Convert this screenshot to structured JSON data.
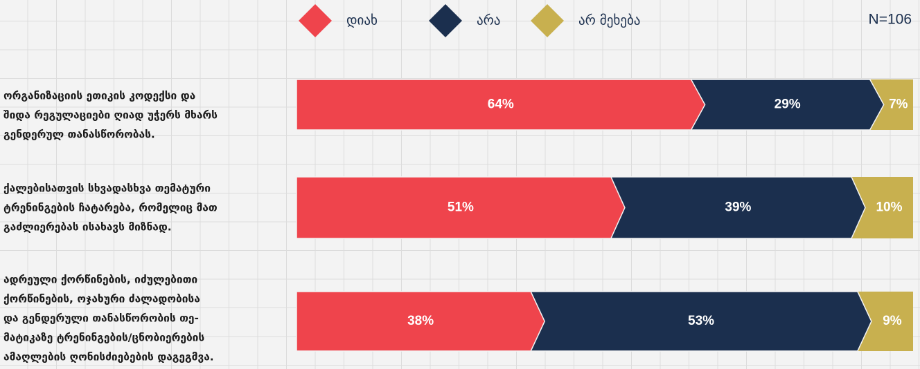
{
  "chart_data": {
    "type": "stacked-bar-100",
    "annotation": "N=106",
    "categories": [
      [
        "ორგანიზაციის ეთიკის კოდექსი და",
        "შიდა რეგულაციები ღიად უჭერს მხარს",
        "გენდერულ თანასწორობას."
      ],
      [
        "ქალებისათვის სხვადასხვა თემატური",
        "ტრენინგების ჩატარება, რომელიც მათ",
        "გაძლიერებას ისახავს მიზნად."
      ],
      [
        "ადრეული ქორწინების, იძულებითი",
        "ქორწინების, ოჯახური ძალადობისა",
        " და გენდერული თანასწორობის თე-",
        "მატიკაზე ტრენინგების/ცნობიერების",
        "ამაღლების ღონისძიებების დაგეგმვა."
      ]
    ],
    "series": [
      {
        "name": "დიახ",
        "color": "#ef444c",
        "values": [
          64,
          51,
          38
        ],
        "value_labels": [
          "64%",
          "51%",
          "38%"
        ]
      },
      {
        "name": "არა",
        "color": "#1b2f4e",
        "values": [
          29,
          39,
          53
        ],
        "value_labels": [
          "29%",
          "39%",
          "53%"
        ]
      },
      {
        "name": "არ მეხება",
        "color": "#c8b04f",
        "values": [
          7,
          10,
          9
        ],
        "value_labels": [
          "7%",
          "10%",
          "9%"
        ]
      }
    ]
  }
}
